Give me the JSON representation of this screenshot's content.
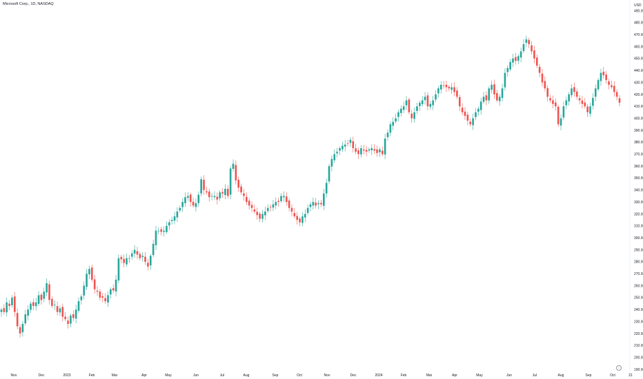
{
  "header": {
    "symbol_line": "Microsoft Corp., 1D, NASDAQ",
    "currency": "USD"
  },
  "colors": {
    "up": "#26a69a",
    "down": "#ef5350",
    "axis_text": "#131722",
    "axis_line": "#e0e3eb"
  },
  "icons": {
    "scroll_to_latest": "arrow-down-circle-icon"
  },
  "chart_data": {
    "type": "candlestick",
    "title": "",
    "xlabel": "",
    "ylabel": "",
    "grid": false,
    "ylim": [
      190,
      495
    ],
    "y_ticks": [
      190,
      200,
      210,
      220,
      230,
      240,
      250,
      260,
      270,
      280,
      290,
      300,
      310,
      320,
      330,
      340,
      350,
      360,
      370,
      380,
      390,
      400,
      410,
      420,
      430,
      440,
      450,
      460,
      470,
      480,
      490
    ],
    "x_ticks": [
      "Nov",
      "Dec",
      "2023",
      "Feb",
      "Mar",
      "Apr",
      "May",
      "Jun",
      "Jul",
      "Aug",
      "Sep",
      "Oct",
      "Nov",
      "Dec",
      "2024",
      "Feb",
      "Mar",
      "Apr",
      "May",
      "Jun",
      "Jul",
      "Aug",
      "Sep",
      "Oct",
      "21"
    ],
    "series": [
      {
        "values": [
          [
            0,
            240
          ],
          [
            1,
            238
          ],
          [
            2,
            246
          ],
          [
            3,
            243
          ],
          [
            4,
            250
          ],
          [
            5,
            238
          ],
          [
            6,
            226
          ],
          [
            7,
            220
          ],
          [
            8,
            228
          ],
          [
            9,
            236
          ],
          [
            10,
            240
          ],
          [
            11,
            245
          ],
          [
            12,
            243
          ],
          [
            13,
            246
          ],
          [
            14,
            252
          ],
          [
            15,
            248
          ],
          [
            16,
            255
          ],
          [
            17,
            262
          ],
          [
            18,
            248
          ],
          [
            19,
            243
          ],
          [
            20,
            244
          ],
          [
            21,
            238
          ],
          [
            22,
            241
          ],
          [
            23,
            234
          ],
          [
            24,
            232
          ],
          [
            25,
            228
          ],
          [
            26,
            235
          ],
          [
            27,
            233
          ],
          [
            28,
            240
          ],
          [
            29,
            247
          ],
          [
            30,
            251
          ],
          [
            31,
            260
          ],
          [
            32,
            270
          ],
          [
            33,
            274
          ],
          [
            34,
            265
          ],
          [
            35,
            257
          ],
          [
            36,
            255
          ],
          [
            37,
            250
          ],
          [
            38,
            250
          ],
          [
            39,
            247
          ],
          [
            40,
            252
          ],
          [
            41,
            257
          ],
          [
            42,
            256
          ],
          [
            43,
            265
          ],
          [
            44,
            283
          ],
          [
            45,
            282
          ],
          [
            46,
            279
          ],
          [
            47,
            283
          ],
          [
            48,
            283
          ],
          [
            49,
            287
          ],
          [
            50,
            290
          ],
          [
            51,
            286
          ],
          [
            52,
            283
          ],
          [
            53,
            285
          ],
          [
            54,
            280
          ],
          [
            55,
            276
          ],
          [
            56,
            285
          ],
          [
            57,
            295
          ],
          [
            58,
            306
          ],
          [
            59,
            306
          ],
          [
            60,
            305
          ],
          [
            61,
            306
          ],
          [
            62,
            310
          ],
          [
            63,
            313
          ],
          [
            64,
            315
          ],
          [
            65,
            318
          ],
          [
            66,
            322
          ],
          [
            67,
            325
          ],
          [
            68,
            330
          ],
          [
            69,
            334
          ],
          [
            70,
            335
          ],
          [
            71,
            330
          ],
          [
            72,
            327
          ],
          [
            73,
            329
          ],
          [
            74,
            336
          ],
          [
            75,
            349
          ],
          [
            76,
            340
          ],
          [
            77,
            338
          ],
          [
            78,
            334
          ],
          [
            79,
            335
          ],
          [
            80,
            335
          ],
          [
            81,
            332
          ],
          [
            82,
            338
          ],
          [
            83,
            337
          ],
          [
            84,
            341
          ],
          [
            85,
            335
          ],
          [
            86,
            358
          ],
          [
            87,
            362
          ],
          [
            88,
            348
          ],
          [
            89,
            342
          ],
          [
            90,
            338
          ],
          [
            91,
            335
          ],
          [
            92,
            330
          ],
          [
            93,
            327
          ],
          [
            94,
            325
          ],
          [
            95,
            322
          ],
          [
            96,
            319
          ],
          [
            97,
            316
          ],
          [
            98,
            320
          ],
          [
            99,
            322
          ],
          [
            100,
            325
          ],
          [
            101,
            326
          ],
          [
            102,
            328
          ],
          [
            103,
            330
          ],
          [
            104,
            330
          ],
          [
            105,
            335
          ],
          [
            106,
            335
          ],
          [
            107,
            330
          ],
          [
            108,
            325
          ],
          [
            109,
            322
          ],
          [
            110,
            318
          ],
          [
            111,
            315
          ],
          [
            112,
            313
          ],
          [
            113,
            318
          ],
          [
            114,
            320
          ],
          [
            115,
            325
          ],
          [
            116,
            328
          ],
          [
            117,
            330
          ],
          [
            118,
            327
          ],
          [
            119,
            329
          ],
          [
            120,
            328
          ],
          [
            121,
            337
          ],
          [
            122,
            346
          ],
          [
            123,
            360
          ],
          [
            124,
            366
          ],
          [
            125,
            370
          ],
          [
            126,
            372
          ],
          [
            127,
            375
          ],
          [
            128,
            377
          ],
          [
            129,
            378
          ],
          [
            130,
            379
          ],
          [
            131,
            382
          ],
          [
            132,
            375
          ],
          [
            133,
            372
          ],
          [
            134,
            370
          ],
          [
            135,
            375
          ],
          [
            136,
            373
          ],
          [
            137,
            372
          ],
          [
            138,
            374
          ],
          [
            139,
            375
          ],
          [
            140,
            373
          ],
          [
            141,
            371
          ],
          [
            142,
            374
          ],
          [
            143,
            370
          ],
          [
            144,
            383
          ],
          [
            145,
            388
          ],
          [
            146,
            395
          ],
          [
            147,
            397
          ],
          [
            148,
            400
          ],
          [
            149,
            405
          ],
          [
            150,
            408
          ],
          [
            151,
            410
          ],
          [
            152,
            415
          ],
          [
            153,
            405
          ],
          [
            154,
            400
          ],
          [
            155,
            405
          ],
          [
            156,
            410
          ],
          [
            157,
            413
          ],
          [
            158,
            415
          ],
          [
            159,
            418
          ],
          [
            160,
            410
          ],
          [
            161,
            412
          ],
          [
            162,
            415
          ],
          [
            163,
            420
          ],
          [
            164,
            425
          ],
          [
            165,
            428
          ],
          [
            166,
            427
          ],
          [
            167,
            426
          ],
          [
            168,
            425
          ],
          [
            169,
            426
          ],
          [
            170,
            422
          ],
          [
            171,
            418
          ],
          [
            172,
            410
          ],
          [
            173,
            405
          ],
          [
            174,
            402
          ],
          [
            175,
            398
          ],
          [
            176,
            395
          ],
          [
            177,
            400
          ],
          [
            178,
            405
          ],
          [
            179,
            408
          ],
          [
            180,
            414
          ],
          [
            181,
            418
          ],
          [
            182,
            415
          ],
          [
            183,
            425
          ],
          [
            184,
            428
          ],
          [
            185,
            420
          ],
          [
            186,
            415
          ],
          [
            187,
            418
          ],
          [
            188,
            425
          ],
          [
            189,
            438
          ],
          [
            190,
            442
          ],
          [
            191,
            447
          ],
          [
            192,
            450
          ],
          [
            193,
            448
          ],
          [
            194,
            452
          ],
          [
            195,
            456
          ],
          [
            196,
            462
          ],
          [
            197,
            466
          ],
          [
            198,
            462
          ],
          [
            199,
            456
          ],
          [
            200,
            450
          ],
          [
            201,
            444
          ],
          [
            202,
            438
          ],
          [
            203,
            430
          ],
          [
            204,
            425
          ],
          [
            205,
            418
          ],
          [
            206,
            415
          ],
          [
            207,
            412
          ],
          [
            208,
            410
          ],
          [
            209,
            395
          ],
          [
            210,
            400
          ],
          [
            211,
            410
          ],
          [
            212,
            415
          ],
          [
            213,
            420
          ],
          [
            214,
            425
          ],
          [
            215,
            422
          ],
          [
            216,
            418
          ],
          [
            217,
            415
          ],
          [
            218,
            412
          ],
          [
            219,
            410
          ],
          [
            220,
            405
          ],
          [
            221,
            410
          ],
          [
            222,
            417
          ],
          [
            223,
            425
          ],
          [
            224,
            432
          ],
          [
            225,
            438
          ],
          [
            226,
            436
          ],
          [
            227,
            432
          ],
          [
            228,
            428
          ],
          [
            229,
            426
          ],
          [
            230,
            422
          ],
          [
            231,
            418
          ],
          [
            232,
            413
          ]
        ]
      }
    ]
  }
}
